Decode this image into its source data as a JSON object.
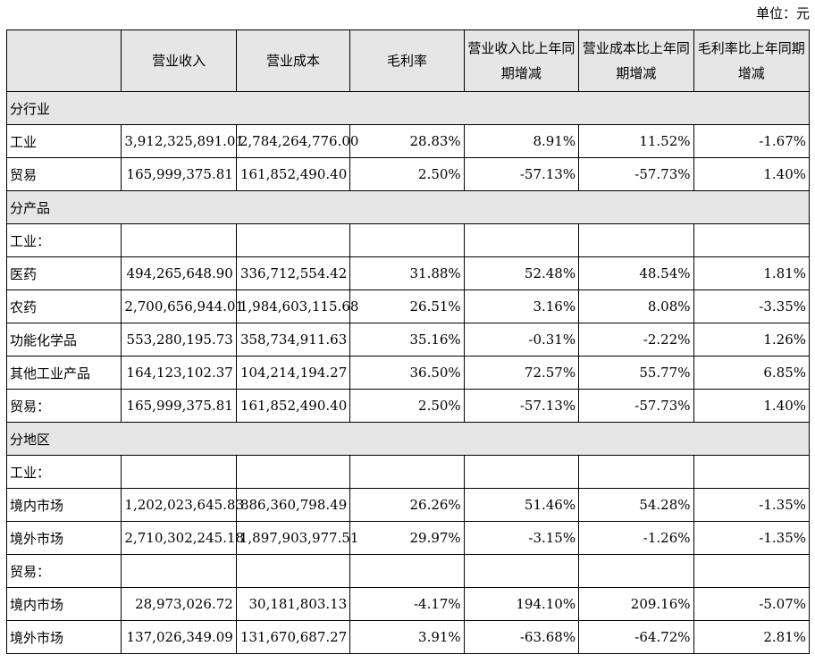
{
  "unit_label": "单位：元",
  "headers": [
    "",
    "营业收入",
    "营业成本",
    "毛利率",
    "营业收入比上年同期增减",
    "营业成本比上年同期增减",
    "毛利率比上年同期增减"
  ],
  "rows": [
    {
      "type": "section",
      "label": "分行业"
    },
    {
      "type": "data",
      "cells": [
        "工业",
        "3,912,325,891.01",
        "2,784,264,776.00",
        "28.83%",
        "8.91%",
        "11.52%",
        "-1.67%"
      ]
    },
    {
      "type": "data",
      "cells": [
        "贸易",
        "165,999,375.81",
        "161,852,490.40",
        "2.50%",
        "-57.13%",
        "-57.73%",
        "1.40%"
      ]
    },
    {
      "type": "section",
      "label": "分产品"
    },
    {
      "type": "data",
      "cells": [
        "工业：",
        "",
        "",
        "",
        "",
        "",
        ""
      ]
    },
    {
      "type": "data",
      "cells": [
        "医药",
        "494,265,648.90",
        "336,712,554.42",
        "31.88%",
        "52.48%",
        "48.54%",
        "1.81%"
      ]
    },
    {
      "type": "data",
      "cells": [
        "农药",
        "2,700,656,944.01",
        "1,984,603,115.68",
        "26.51%",
        "3.16%",
        "8.08%",
        "-3.35%"
      ]
    },
    {
      "type": "data",
      "cells": [
        "功能化学品",
        "553,280,195.73",
        "358,734,911.63",
        "35.16%",
        "-0.31%",
        "-2.22%",
        "1.26%"
      ]
    },
    {
      "type": "data",
      "cells": [
        "其他工业产品",
        "164,123,102.37",
        "104,214,194.27",
        "36.50%",
        "72.57%",
        "55.77%",
        "6.85%"
      ]
    },
    {
      "type": "data",
      "cells": [
        "贸易：",
        "165,999,375.81",
        "161,852,490.40",
        "2.50%",
        "-57.13%",
        "-57.73%",
        "1.40%"
      ]
    },
    {
      "type": "section",
      "label": "分地区"
    },
    {
      "type": "data",
      "cells": [
        "工业：",
        "",
        "",
        "",
        "",
        "",
        ""
      ]
    },
    {
      "type": "data",
      "cells": [
        "境内市场",
        "1,202,023,645.83",
        "886,360,798.49",
        "26.26%",
        "51.46%",
        "54.28%",
        "-1.35%"
      ]
    },
    {
      "type": "data",
      "cells": [
        "境外市场",
        "2,710,302,245.18",
        "1,897,903,977.51",
        "29.97%",
        "-3.15%",
        "-1.26%",
        "-1.35%"
      ]
    },
    {
      "type": "data",
      "cells": [
        "贸易：",
        "",
        "",
        "",
        "",
        "",
        ""
      ]
    },
    {
      "type": "data",
      "cells": [
        "境内市场",
        "28,973,026.72",
        "30,181,803.13",
        "-4.17%",
        "194.10%",
        "209.16%",
        "-5.07%"
      ]
    },
    {
      "type": "data",
      "cells": [
        "境外市场",
        "137,026,349.09",
        "131,670,687.27",
        "3.91%",
        "-63.68%",
        "-64.72%",
        "2.81%"
      ]
    }
  ]
}
